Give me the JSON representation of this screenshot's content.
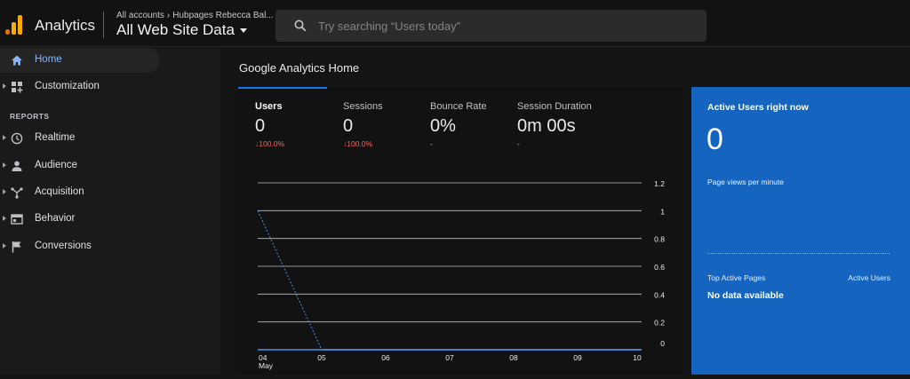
{
  "app": {
    "title": "Analytics"
  },
  "header": {
    "breadcrumb_root": "All accounts",
    "breadcrumb_account": "Hubpages Rebecca Bal...",
    "property": "All Web Site Data"
  },
  "search": {
    "placeholder": "Try searching “Users today”"
  },
  "sidebar": {
    "items": [
      {
        "label": "Home",
        "icon": "home-icon",
        "active": true
      },
      {
        "label": "Customization",
        "icon": "dashboard-icon"
      },
      {
        "label": "Realtime",
        "icon": "clock-icon"
      },
      {
        "label": "Audience",
        "icon": "person-icon"
      },
      {
        "label": "Acquisition",
        "icon": "acquisition-icon"
      },
      {
        "label": "Behavior",
        "icon": "behavior-icon"
      },
      {
        "label": "Conversions",
        "icon": "flag-icon"
      }
    ],
    "section_reports": "REPORTS"
  },
  "main": {
    "title": "Google Analytics Home"
  },
  "metrics": [
    {
      "label": "Users",
      "value": "0",
      "change": "↓100.0%",
      "trend": "down"
    },
    {
      "label": "Sessions",
      "value": "0",
      "change": "↓100.0%",
      "trend": "down"
    },
    {
      "label": "Bounce Rate",
      "value": "0%",
      "change": "-",
      "trend": "flat"
    },
    {
      "label": "Session Duration",
      "value": "0m 00s",
      "change": "-",
      "trend": "flat"
    }
  ],
  "chart_data": {
    "type": "line",
    "x": [
      "04",
      "05",
      "06",
      "07",
      "08",
      "09",
      "10"
    ],
    "x_sublabel": "May",
    "series": [
      {
        "values": [
          1,
          0,
          0,
          0,
          0,
          0,
          0
        ],
        "dashed_segment": [
          0,
          1
        ]
      }
    ],
    "y_ticks": [
      "1.2",
      "1",
      "0.8",
      "0.6",
      "0.4",
      "0.2",
      "0"
    ],
    "ylim": [
      0,
      1.2
    ],
    "grid": true
  },
  "active_users": {
    "title": "Active Users right now",
    "value": "0",
    "subtitle": "Page views per minute",
    "col_pages": "Top Active Pages",
    "col_users": "Active Users",
    "no_data": "No data available"
  },
  "colors": {
    "accent": "#1a73e8",
    "card": "#1565c0",
    "negative": "#ee675c",
    "logo_orange": "#f9ab00",
    "logo_dark": "#e37400"
  }
}
